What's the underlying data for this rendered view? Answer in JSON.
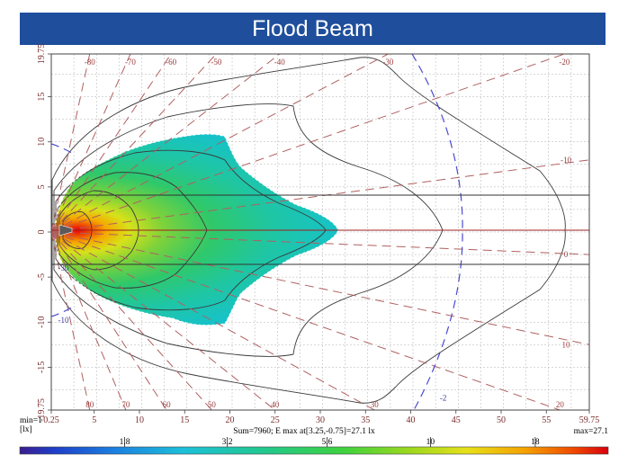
{
  "title": "Flood Beam",
  "chart_data": {
    "type": "heatmap",
    "title": "Flood Beam",
    "x_range": [
      0.25,
      59.75
    ],
    "y_range": [
      -19.75,
      19.75
    ],
    "x_ticks": [
      {
        "v": 0.25,
        "label": "0.25"
      },
      {
        "v": 5,
        "label": "5"
      },
      {
        "v": 10,
        "label": "10"
      },
      {
        "v": 15,
        "label": "15"
      },
      {
        "v": 20,
        "label": "20"
      },
      {
        "v": 25,
        "label": "25"
      },
      {
        "v": 30,
        "label": "30"
      },
      {
        "v": 35,
        "label": "35"
      },
      {
        "v": 40,
        "label": "40"
      },
      {
        "v": 45,
        "label": "45"
      },
      {
        "v": 50,
        "label": "50"
      },
      {
        "v": 55,
        "label": "55"
      },
      {
        "v": 59.75,
        "label": "59.75"
      }
    ],
    "y_ticks": [
      {
        "v": 19.75,
        "label": "19.75"
      },
      {
        "v": 15,
        "label": "15"
      },
      {
        "v": 10,
        "label": "10"
      },
      {
        "v": 5,
        "label": "5"
      },
      {
        "v": 0,
        "label": "0"
      },
      {
        "v": -5,
        "label": "-5"
      },
      {
        "v": -10,
        "label": "-10"
      },
      {
        "v": -15,
        "label": "-15"
      },
      {
        "v": -19.75,
        "label": "-19.75"
      }
    ],
    "angle_labels_top": [
      {
        "x": 4.5,
        "label": "-80"
      },
      {
        "x": 9,
        "label": "-70"
      },
      {
        "x": 13.5,
        "label": "-60"
      },
      {
        "x": 18.5,
        "label": "-50"
      },
      {
        "x": 25.5,
        "label": "-40"
      },
      {
        "x": 37.5,
        "label": "-30"
      },
      {
        "x": 57,
        "label": "-20"
      }
    ],
    "angle_labels_right": [
      {
        "y": 8,
        "label": "-10"
      },
      {
        "y": -2.5,
        "label": "0"
      },
      {
        "y": -12.5,
        "label": "10"
      }
    ],
    "angle_labels_bottom": [
      {
        "x": 4.5,
        "label": "80"
      },
      {
        "x": 8.5,
        "label": "70"
      },
      {
        "x": 13,
        "label": "60"
      },
      {
        "x": 18,
        "label": "50"
      },
      {
        "x": 25,
        "label": "40"
      },
      {
        "x": 36,
        "label": "30"
      },
      {
        "x": 56.5,
        "label": "20"
      }
    ],
    "dashed_circle_labels": [
      {
        "x": 1,
        "y": -4,
        "label": "-30"
      },
      {
        "x": 1,
        "y": -9.8,
        "label": "-10"
      },
      {
        "x": 43,
        "y": -18.4,
        "label": "-2"
      }
    ],
    "peak_value": 27.1,
    "peak_location": [
      3.25,
      -0.75
    ],
    "colorbar": {
      "unit": "[lx]",
      "min": 1,
      "max": 27.1,
      "ticks": [
        {
          "v": 1.8,
          "label": "1.8"
        },
        {
          "v": 3.2,
          "label": "3.2"
        },
        {
          "v": 5.6,
          "label": "5.6"
        },
        {
          "v": 10,
          "label": "10"
        },
        {
          "v": 18,
          "label": "18"
        }
      ]
    },
    "isolux_levels": [
      1,
      1.8,
      3.2,
      5.6,
      10,
      18
    ]
  },
  "footer": {
    "min_label": "min=1",
    "max_label": "max=27.1",
    "stats": "Sum=7960; E max at[3.25,-0.75]=27.1 lx"
  }
}
